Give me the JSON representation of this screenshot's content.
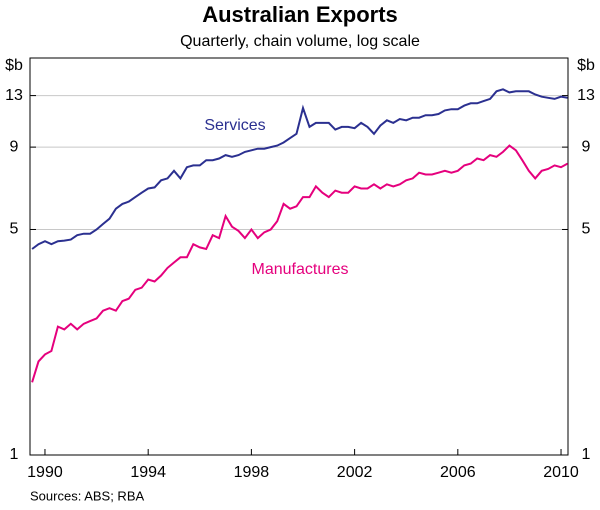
{
  "chart_data": {
    "type": "line",
    "title": "Australian Exports",
    "subtitle": "Quarterly, chain volume, log scale",
    "y_unit": "$b",
    "source": "Sources: ABS; RBA",
    "log_scale": true,
    "grid": true,
    "xlim": [
      1989.42,
      2010.27
    ],
    "xticks": [
      1990,
      1994,
      1998,
      2002,
      2006,
      2010
    ],
    "ylim": [
      1,
      17
    ],
    "yticks": [
      1,
      5,
      9,
      13
    ],
    "x": [
      1989.5,
      1989.75,
      1990,
      1990.25,
      1990.5,
      1990.75,
      1991,
      1991.25,
      1991.5,
      1991.75,
      1992,
      1992.25,
      1992.5,
      1992.75,
      1993,
      1993.25,
      1993.5,
      1993.75,
      1994,
      1994.25,
      1994.5,
      1994.75,
      1995,
      1995.25,
      1995.5,
      1995.75,
      1996,
      1996.25,
      1996.5,
      1996.75,
      1997,
      1997.25,
      1997.5,
      1997.75,
      1998,
      1998.25,
      1998.5,
      1998.75,
      1999,
      1999.25,
      1999.5,
      1999.75,
      2000,
      2000.25,
      2000.5,
      2000.75,
      2001,
      2001.25,
      2001.5,
      2001.75,
      2002,
      2002.25,
      2002.5,
      2002.75,
      2003,
      2003.25,
      2003.5,
      2003.75,
      2004,
      2004.25,
      2004.5,
      2004.75,
      2005,
      2005.25,
      2005.5,
      2005.75,
      2006,
      2006.25,
      2006.5,
      2006.75,
      2007,
      2007.25,
      2007.5,
      2007.75,
      2008,
      2008.25,
      2008.5,
      2008.75,
      2009,
      2009.25,
      2009.5,
      2009.75,
      2010,
      2010.25
    ],
    "series": [
      {
        "name": "Services",
        "color": "#2b3090",
        "values": [
          4.35,
          4.5,
          4.6,
          4.5,
          4.6,
          4.62,
          4.65,
          4.8,
          4.85,
          4.85,
          5.0,
          5.2,
          5.4,
          5.8,
          6.0,
          6.1,
          6.3,
          6.5,
          6.7,
          6.75,
          7.1,
          7.2,
          7.6,
          7.2,
          7.8,
          7.9,
          7.9,
          8.2,
          8.2,
          8.3,
          8.5,
          8.4,
          8.5,
          8.7,
          8.8,
          8.9,
          8.9,
          9.0,
          9.1,
          9.3,
          9.6,
          9.9,
          11.9,
          10.4,
          10.7,
          10.7,
          10.7,
          10.2,
          10.4,
          10.4,
          10.3,
          10.7,
          10.4,
          9.9,
          10.5,
          10.9,
          10.7,
          11.0,
          10.9,
          11.1,
          11.1,
          11.3,
          11.3,
          11.4,
          11.7,
          11.8,
          11.8,
          12.1,
          12.3,
          12.3,
          12.5,
          12.7,
          13.4,
          13.6,
          13.3,
          13.4,
          13.4,
          13.4,
          13.1,
          12.9,
          12.8,
          12.7,
          12.9,
          12.8
        ]
      },
      {
        "name": "Manufactures",
        "color": "#e5007d",
        "values": [
          1.68,
          1.95,
          2.05,
          2.1,
          2.5,
          2.45,
          2.55,
          2.45,
          2.55,
          2.6,
          2.65,
          2.8,
          2.85,
          2.8,
          3.0,
          3.05,
          3.25,
          3.3,
          3.5,
          3.45,
          3.6,
          3.8,
          3.95,
          4.1,
          4.1,
          4.5,
          4.4,
          4.35,
          4.8,
          4.7,
          5.5,
          5.1,
          4.95,
          4.7,
          5.0,
          4.7,
          4.9,
          5.0,
          5.3,
          6.0,
          5.8,
          5.9,
          6.3,
          6.3,
          6.8,
          6.5,
          6.3,
          6.6,
          6.5,
          6.5,
          6.8,
          6.7,
          6.7,
          6.9,
          6.7,
          6.9,
          6.8,
          6.9,
          7.1,
          7.2,
          7.5,
          7.4,
          7.4,
          7.5,
          7.6,
          7.5,
          7.6,
          7.9,
          8.0,
          8.3,
          8.2,
          8.5,
          8.4,
          8.7,
          9.1,
          8.8,
          8.2,
          7.6,
          7.2,
          7.6,
          7.7,
          7.9,
          7.8,
          8.0
        ]
      }
    ]
  }
}
